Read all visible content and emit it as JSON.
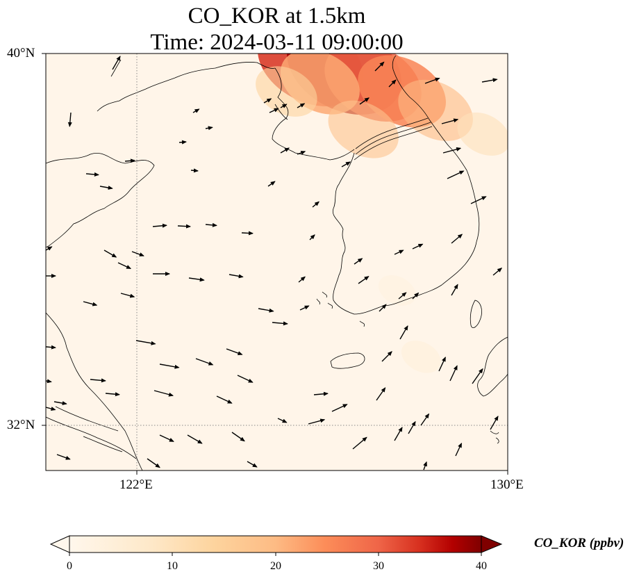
{
  "title": {
    "line1": "CO_KOR at 1.5km",
    "line2": "Time: 2024-03-11 09:00:00"
  },
  "axes": {
    "lon_range": [
      120.4,
      130.0
    ],
    "lat_range": [
      31.2,
      40.0
    ],
    "x_ticks": [
      {
        "value": 122,
        "label": "122°E"
      },
      {
        "value": 130,
        "label": "130°E"
      }
    ],
    "y_ticks": [
      {
        "value": 40,
        "label": "40°N"
      },
      {
        "value": 32,
        "label": "32°N"
      }
    ],
    "gridlines": "dotted"
  },
  "colorbar": {
    "label": "CO_KOR (ppbv)",
    "colormap": "OrRd",
    "range": [
      0,
      40
    ],
    "ticks": [
      "0",
      "10",
      "20",
      "30",
      "40"
    ],
    "extend": "both",
    "orientation": "horizontal"
  },
  "colors": {
    "background": "#fff5e9",
    "coast": "#000000",
    "grid": "#888888"
  },
  "plumes": [
    {
      "lon": 125.9,
      "lat": 39.8,
      "value": 34
    },
    {
      "lon": 126.6,
      "lat": 39.7,
      "value": 38
    },
    {
      "lon": 127.2,
      "lat": 39.4,
      "value": 30
    },
    {
      "lon": 127.8,
      "lat": 39.2,
      "value": 26
    },
    {
      "lon": 128.5,
      "lat": 38.8,
      "value": 20
    },
    {
      "lon": 126.1,
      "lat": 39.4,
      "value": 22
    },
    {
      "lon": 125.4,
      "lat": 39.2,
      "value": 14
    },
    {
      "lon": 127.0,
      "lat": 38.4,
      "value": 18
    },
    {
      "lon": 129.5,
      "lat": 38.3,
      "value": 10
    },
    {
      "lon": 127.7,
      "lat": 35.0,
      "value": 3
    },
    {
      "lon": 128.2,
      "lat": 33.6,
      "value": 4
    }
  ]
}
